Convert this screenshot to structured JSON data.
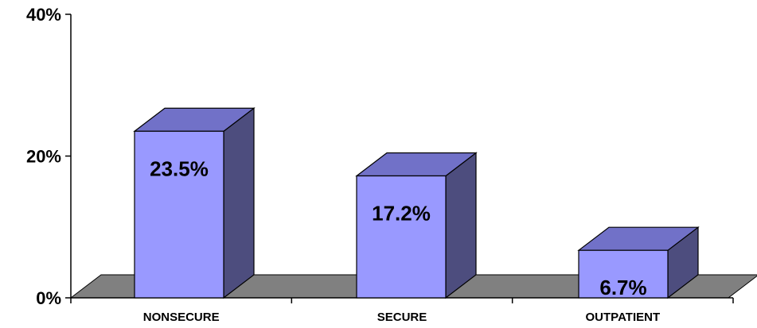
{
  "chart_data": {
    "type": "bar",
    "categories": [
      "NONSECURE",
      "SECURE",
      "OUTPATIENT"
    ],
    "values": [
      23.5,
      17.2,
      6.7
    ],
    "data_labels": [
      "23.5%",
      "17.2%",
      "6.7%"
    ],
    "ylim": [
      0,
      40
    ],
    "yticks": [
      0,
      20,
      40
    ],
    "ytick_labels": [
      "0%",
      "20%",
      "40%"
    ],
    "title": "",
    "xlabel": "",
    "ylabel": "",
    "grid": false,
    "legend": "none",
    "style": "3d-column",
    "colors": {
      "bar_front": "#9999ff",
      "bar_top": "#7171c8",
      "bar_side": "#4d4d7e",
      "floor": "#808080",
      "axis": "#000000"
    }
  }
}
